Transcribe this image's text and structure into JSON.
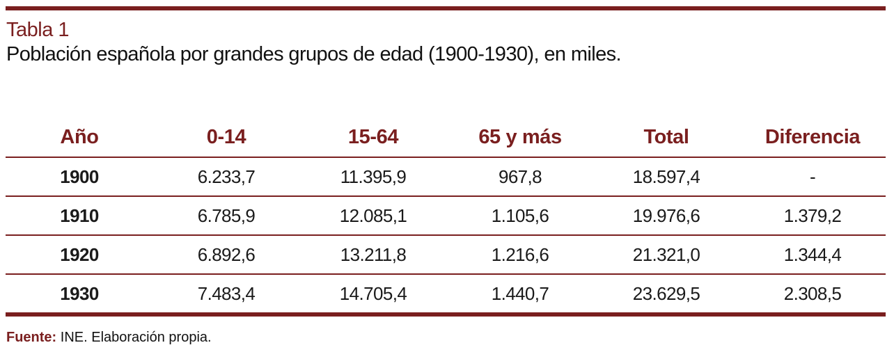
{
  "header": {
    "label": "Tabla 1",
    "caption": "Población española por grandes grupos de edad (1900-1930), en miles."
  },
  "table": {
    "columns": [
      "Año",
      "0-14",
      "15-64",
      "65 y más",
      "Total",
      "Diferencia"
    ],
    "rows": [
      [
        "1900",
        "6.233,7",
        "11.395,9",
        "967,8",
        "18.597,4",
        "-"
      ],
      [
        "1910",
        "6.785,9",
        "12.085,1",
        "1.105,6",
        "19.976,6",
        "1.379,2"
      ],
      [
        "1920",
        "6.892,6",
        "13.211,8",
        "1.216,6",
        "21.321,0",
        "1.344,4"
      ],
      [
        "1930",
        "7.483,4",
        "14.705,4",
        "1.440,7",
        "23.629,5",
        "2.308,5"
      ]
    ]
  },
  "footer": {
    "source_label": "Fuente:",
    "source_text": " INE. Elaboración propia."
  },
  "colors": {
    "accent": "#7a1f1f",
    "text": "#111111"
  }
}
